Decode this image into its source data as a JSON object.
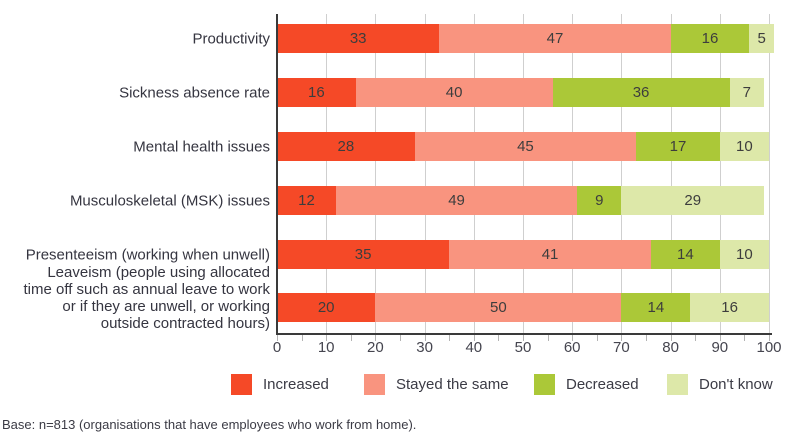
{
  "chart_data": {
    "type": "bar",
    "variant": "horizontal-stacked",
    "title": "",
    "xlabel": "",
    "ylabel": "",
    "xlim": [
      0,
      100
    ],
    "x_major_ticks": [
      0,
      10,
      20,
      30,
      40,
      50,
      60,
      70,
      80,
      90,
      100
    ],
    "x_minor_tick_step": 5,
    "grid": "vertical gridlines every 10",
    "legend_position": "bottom",
    "categories": [
      "Productivity",
      "Sickness absence rate",
      "Mental health issues",
      "Musculoskeletal (MSK) issues",
      "Presenteeism (working when unwell)",
      "Leaveism (people using allocated\ntime off such as annual leave to work\nor if they are unwell, or working\noutside contracted hours)"
    ],
    "series": [
      {
        "name": "Increased",
        "color": "#f54927",
        "values": [
          33,
          16,
          28,
          12,
          35,
          20
        ]
      },
      {
        "name": "Stayed the same",
        "color": "#f9947f",
        "values": [
          47,
          40,
          45,
          49,
          41,
          50
        ]
      },
      {
        "name": "Decreased",
        "color": "#abc838",
        "values": [
          16,
          36,
          17,
          9,
          14,
          14
        ]
      },
      {
        "name": "Don't know",
        "color": "#dde8a9",
        "values": [
          5,
          7,
          10,
          29,
          10,
          16
        ]
      }
    ]
  },
  "base_note": "Base: n=813 (organisations that have employees who work from home).",
  "colors": {
    "axis": "#3a3a3a",
    "gridline": "#cfcfcf",
    "text": "#3b3b45",
    "increased": "#f54927",
    "stayed_same": "#f9947f",
    "decreased": "#abc838",
    "dont_know": "#dde8a9"
  }
}
